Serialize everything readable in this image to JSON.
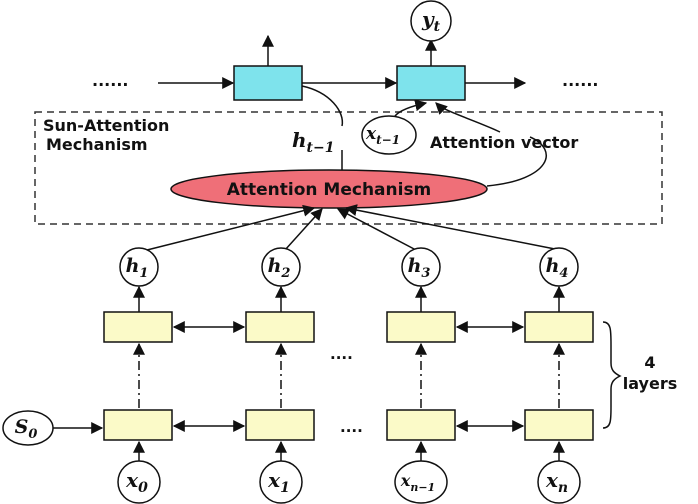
{
  "colors": {
    "rnn_cell": "#fbfac8",
    "decoder_cell": "#7ee3ec",
    "attention_fill": "#ef6f78",
    "stroke": "#111111",
    "dashed_box": "#333333"
  },
  "attention_box": {
    "title_line1": "Sun-Attention",
    "title_line2": "Mechanism",
    "mechanism_label": "Attention Mechanism",
    "vector_label": "Attention vector",
    "h_prev": {
      "base": "h",
      "sub": "t−1"
    },
    "x_prev": {
      "base": "x",
      "sub": "t−1"
    }
  },
  "decoder": {
    "left_dots": "......",
    "right_dots": "......",
    "output": {
      "base": "y",
      "sub": "t"
    }
  },
  "encoder": {
    "hidden_states": [
      {
        "base": "h",
        "sub": "1"
      },
      {
        "base": "h",
        "sub": "2"
      },
      {
        "base": "h",
        "sub": "3"
      },
      {
        "base": "h",
        "sub": "4"
      }
    ],
    "inputs": [
      {
        "base": "x",
        "sub": "0"
      },
      {
        "base": "x",
        "sub": "1"
      },
      {
        "base": "x",
        "sub": "n−1"
      },
      {
        "base": "x",
        "sub": "n"
      }
    ],
    "initial_state": {
      "base": "S",
      "sub": "0"
    },
    "middle_dots": "....",
    "layers_label_line1": "4",
    "layers_label_line2": "layers"
  }
}
